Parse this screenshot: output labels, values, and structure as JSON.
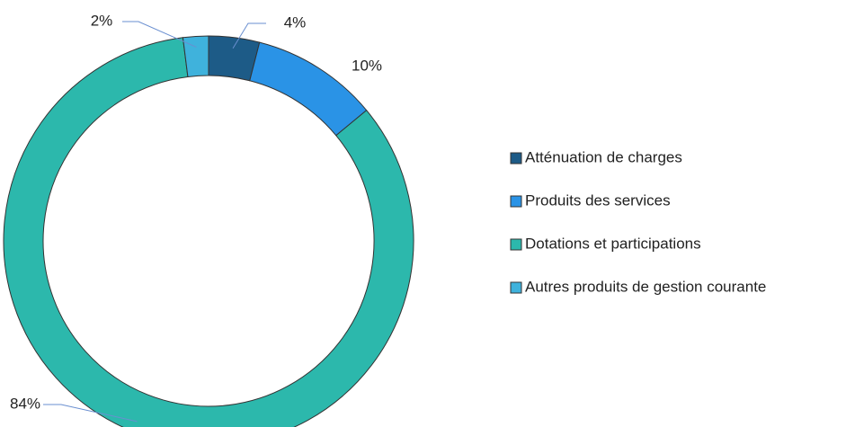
{
  "chart_data": {
    "type": "donut",
    "categories": [
      "Atténuation de charges",
      "Produits des services",
      "Dotations et participations",
      "Autres produits de gestion courante"
    ],
    "values": [
      4,
      10,
      84,
      2
    ],
    "value_labels": [
      "4%",
      "10%",
      "84%",
      "2%"
    ],
    "colors": [
      "#1d5b87",
      "#2a93e6",
      "#2cb8ac",
      "#3fb2dc"
    ],
    "legend": "right"
  }
}
